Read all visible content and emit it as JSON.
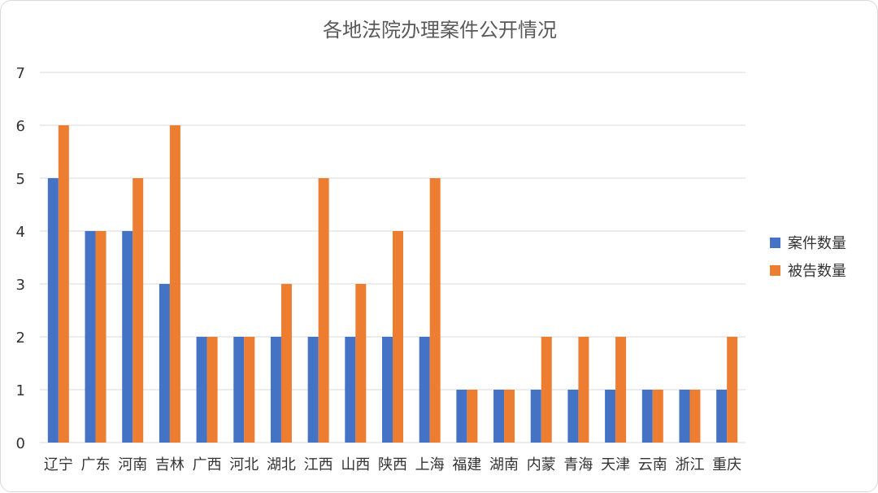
{
  "chart_data": {
    "type": "bar",
    "title": "各地法院办理案件公开情况",
    "categories": [
      "辽宁",
      "广东",
      "河南",
      "吉林",
      "广西",
      "河北",
      "湖北",
      "江西",
      "山西",
      "陕西",
      "上海",
      "福建",
      "湖南",
      "内蒙",
      "青海",
      "天津",
      "云南",
      "浙江",
      "重庆"
    ],
    "series": [
      {
        "name": "案件数量",
        "color": "#4472c4",
        "values": [
          5,
          4,
          4,
          3,
          2,
          2,
          2,
          2,
          2,
          2,
          2,
          1,
          1,
          1,
          1,
          1,
          1,
          1,
          1
        ]
      },
      {
        "name": "被告数量",
        "color": "#ed7d31",
        "values": [
          6,
          4,
          5,
          6,
          2,
          2,
          3,
          5,
          3,
          4,
          5,
          1,
          1,
          2,
          2,
          2,
          1,
          1,
          2
        ]
      }
    ],
    "ylim": [
      0,
      7
    ],
    "yticks": [
      0,
      1,
      2,
      3,
      4,
      5,
      6,
      7
    ],
    "grid": true,
    "legend_position": "right"
  }
}
